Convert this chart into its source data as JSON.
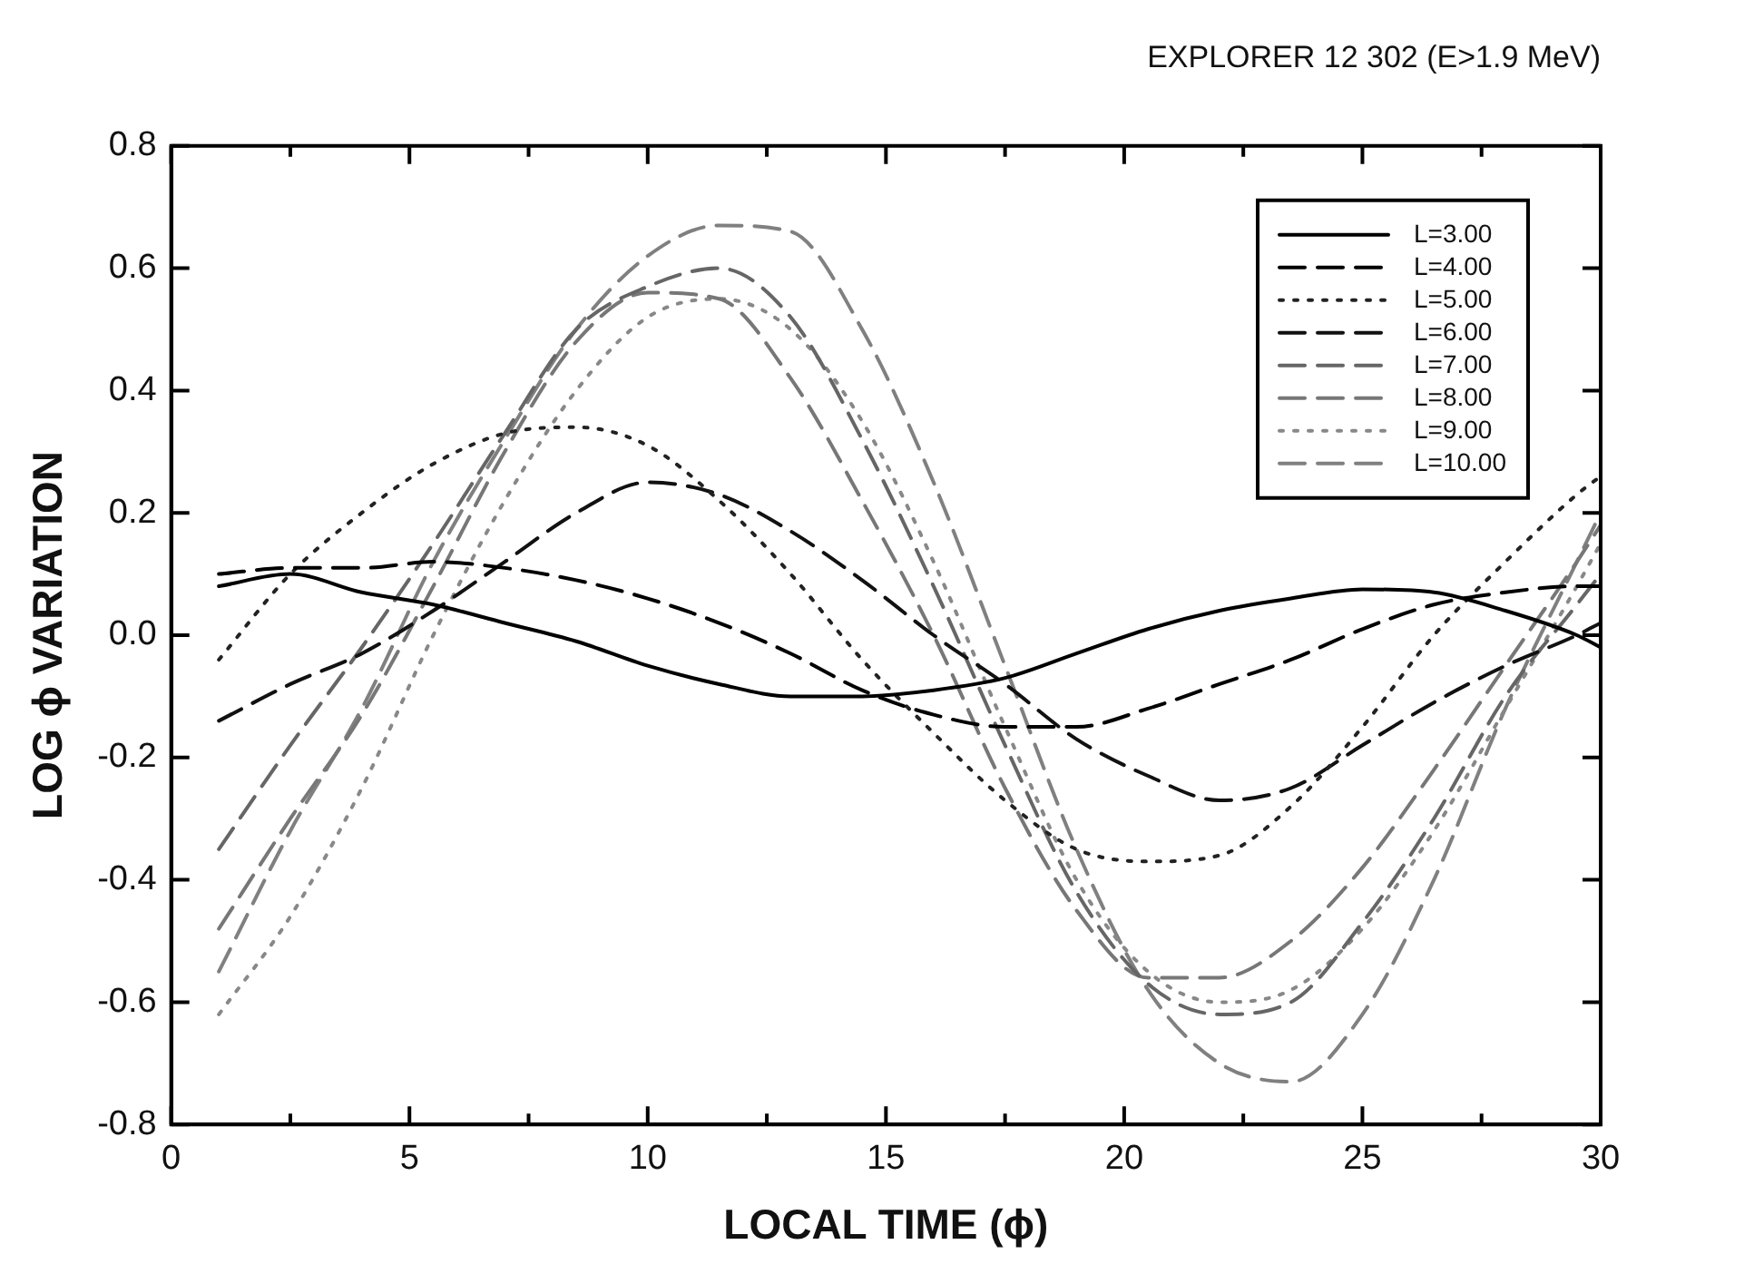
{
  "chart_data": {
    "type": "line",
    "title": "EXPLORER 12 302 (E>1.9 MeV)",
    "xlabel": "LOCAL TIME (ϕ)",
    "ylabel": "LOG ϕ VARIATION",
    "x": [
      1,
      2.5,
      4,
      5.5,
      7,
      8.5,
      10,
      11.5,
      13,
      14.5,
      16,
      17.5,
      19,
      20.5,
      22,
      23.5,
      25,
      26.5,
      28,
      29.5,
      30
    ],
    "series": [
      {
        "name": "L=3.00",
        "color": "#000000",
        "line_style": "solid",
        "values": [
          0.08,
          0.1,
          0.07,
          0.05,
          0.02,
          -0.01,
          -0.05,
          -0.08,
          -0.1,
          -0.1,
          -0.09,
          -0.07,
          -0.03,
          0.01,
          0.04,
          0.06,
          0.075,
          0.07,
          0.04,
          0.0,
          -0.02
        ]
      },
      {
        "name": "L=4.00",
        "color": "#000000",
        "line_style": "dashed",
        "values": [
          0.1,
          0.11,
          0.11,
          0.12,
          0.11,
          0.09,
          0.06,
          0.02,
          -0.03,
          -0.09,
          -0.13,
          -0.15,
          -0.15,
          -0.12,
          -0.08,
          -0.04,
          0.01,
          0.05,
          0.07,
          0.08,
          0.08
        ]
      },
      {
        "name": "L=5.00",
        "color": "#222222",
        "line_style": "dotted",
        "values": [
          -0.04,
          0.1,
          0.2,
          0.28,
          0.33,
          0.34,
          0.31,
          0.22,
          0.1,
          -0.04,
          -0.16,
          -0.27,
          -0.35,
          -0.37,
          -0.36,
          -0.28,
          -0.15,
          0.0,
          0.12,
          0.23,
          0.26
        ]
      },
      {
        "name": "L=6.00",
        "color": "#111111",
        "line_style": "dashed",
        "values": [
          -0.14,
          -0.08,
          -0.03,
          0.04,
          0.12,
          0.2,
          0.25,
          0.23,
          0.17,
          0.09,
          0.0,
          -0.08,
          -0.17,
          -0.23,
          -0.27,
          -0.25,
          -0.18,
          -0.11,
          -0.05,
          0.0,
          0.02
        ]
      },
      {
        "name": "L=7.00",
        "color": "#666666",
        "line_style": "dashed",
        "values": [
          -0.35,
          -0.18,
          -0.02,
          0.15,
          0.33,
          0.5,
          0.57,
          0.6,
          0.52,
          0.32,
          0.08,
          -0.18,
          -0.42,
          -0.57,
          -0.62,
          -0.6,
          -0.47,
          -0.3,
          -0.1,
          0.05,
          0.1
        ]
      },
      {
        "name": "L=8.00",
        "color": "#777777",
        "line_style": "dashed",
        "values": [
          -0.48,
          -0.3,
          -0.13,
          0.08,
          0.3,
          0.48,
          0.56,
          0.55,
          0.42,
          0.22,
          0.0,
          -0.25,
          -0.45,
          -0.56,
          -0.56,
          -0.5,
          -0.38,
          -0.22,
          -0.05,
          0.12,
          0.18
        ]
      },
      {
        "name": "L=9.00",
        "color": "#888888",
        "line_style": "dotted",
        "values": [
          -0.62,
          -0.46,
          -0.25,
          0.0,
          0.22,
          0.4,
          0.52,
          0.55,
          0.5,
          0.35,
          0.12,
          -0.15,
          -0.4,
          -0.55,
          -0.6,
          -0.58,
          -0.48,
          -0.32,
          -0.12,
          0.08,
          0.15
        ]
      },
      {
        "name": "L=10.00",
        "color": "#808080",
        "line_style": "dashed",
        "values": [
          -0.55,
          -0.32,
          -0.12,
          0.12,
          0.32,
          0.5,
          0.62,
          0.67,
          0.66,
          0.5,
          0.25,
          -0.05,
          -0.35,
          -0.58,
          -0.7,
          -0.73,
          -0.62,
          -0.4,
          -0.12,
          0.12,
          0.2
        ]
      }
    ],
    "xlim": [
      0,
      30
    ],
    "xticks": [
      0,
      {
        "value": 2.5,
        "label": null
      },
      5,
      {
        "value": 7.5,
        "label": null
      },
      10,
      {
        "value": 12.5,
        "label": null
      },
      15,
      {
        "value": 17.5,
        "label": null
      },
      20,
      {
        "value": 22.5,
        "label": null
      },
      25,
      {
        "value": 27.5,
        "label": null
      },
      30
    ],
    "ylim": [
      -0.8,
      0.8
    ],
    "yticks": [
      -0.8,
      -0.6,
      -0.4,
      -0.2,
      {
        "value": 0,
        "label": "0.0"
      },
      0.2,
      0.4,
      0.6,
      0.8
    ],
    "grid": false,
    "legend": "top right",
    "marker": "none"
  }
}
